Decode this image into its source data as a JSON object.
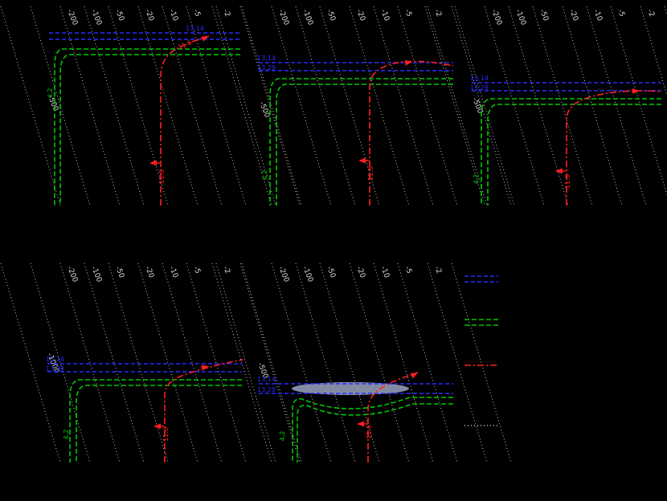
{
  "background": "#000000",
  "colors": {
    "blue": "#2a2aff",
    "green": "#00c800",
    "red": "#ff2020",
    "gray": "#c8c8c8",
    "label_gray": "#dcdcdc",
    "band": "#9aa3c0"
  },
  "chart_data": {
    "type": "line",
    "style": "five-panel contour/trajectory diagram on black background; gray dotted diagonal contour lines, paired blue dashed contours, paired green dashed contours, red dash-dot trajectory with direction arrows",
    "legend": {
      "entries": [
        {
          "name": "blue-dashed-pair"
        },
        {
          "name": "green-dashed-pair"
        },
        {
          "name": "red-dash-dot"
        },
        {
          "name": "gray-dotted"
        }
      ]
    },
    "panels": [
      {
        "name": "top-left",
        "dotted_labels_top": [
          "-200",
          "-100",
          "-50",
          "-20",
          "-10",
          "-5",
          "-2"
        ],
        "left_label": "-500",
        "blue_labels": [
          "13,14"
        ],
        "green_label": "4,2",
        "red_vertical_label": "11.6",
        "red_top_label": "11.6"
      },
      {
        "name": "top-middle",
        "dotted_labels_top": [
          "-200",
          "-100",
          "-50",
          "-20",
          "-10",
          "-5",
          "-2"
        ],
        "left_label": "-500",
        "blue_labels": [
          "13,14",
          "13,29"
        ],
        "green_label": "4,2",
        "red_vertical_label": "11.6"
      },
      {
        "name": "top-right",
        "dotted_labels_top": [
          "-200",
          "-100",
          "-50",
          "-20",
          "-10",
          "-5",
          "-2"
        ],
        "left_label": "-500",
        "blue_labels": [
          "13,14",
          "13,29"
        ],
        "green_label": "4,2",
        "red_vertical_label": "11.6"
      },
      {
        "name": "bottom-left",
        "dotted_labels_top": [
          "-200",
          "-100",
          "-50",
          "-20",
          "-10",
          "-5",
          "-2"
        ],
        "left_label": "-1000",
        "blue_labels": [
          "13,14",
          "13,29"
        ],
        "green_label": "4,2",
        "red_vertical_label": "11.6"
      },
      {
        "name": "bottom-middle",
        "dotted_labels_top": [
          "-200",
          "-100",
          "-50",
          "-20",
          "-10",
          "-5",
          "-2"
        ],
        "left_label": "-500",
        "blue_labels": [
          "13,14",
          "13,29"
        ],
        "green_label": "4,2",
        "red_vertical_label": "11.6",
        "shaded_region": true
      }
    ]
  }
}
